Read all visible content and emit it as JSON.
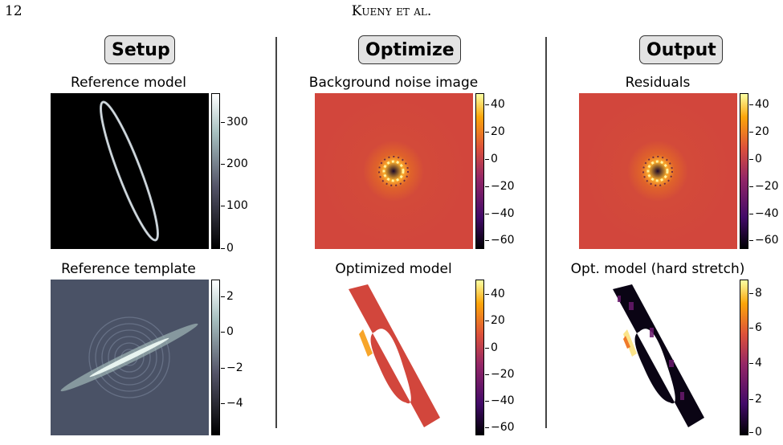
{
  "header": {
    "page_number": "12",
    "authors": "Kueny et al."
  },
  "columns": [
    {
      "badge": "Setup"
    },
    {
      "badge": "Optimize"
    },
    {
      "badge": "Output"
    }
  ],
  "panels": {
    "reference_model": {
      "title": "Reference model",
      "colormap": "bone",
      "ticks": [
        "300",
        "200",
        "100",
        "0"
      ]
    },
    "reference_template": {
      "title": "Reference template",
      "colormap": "bone",
      "ticks": [
        "2",
        "0",
        "−2",
        "−4"
      ]
    },
    "background_noise": {
      "title": "Background noise image",
      "colormap": "inferno",
      "ticks": [
        "40",
        "20",
        "0",
        "−20",
        "−40",
        "−60"
      ]
    },
    "optimized_model": {
      "title": "Optimized model",
      "colormap": "inferno",
      "ticks": [
        "40",
        "20",
        "0",
        "−20",
        "−40",
        "−60"
      ]
    },
    "residuals": {
      "title": "Residuals",
      "colormap": "inferno",
      "ticks": [
        "40",
        "20",
        "0",
        "−20",
        "−40",
        "−60"
      ]
    },
    "opt_model_hard": {
      "title": "Opt. model (hard stretch)",
      "colormap": "inferno",
      "ticks": [
        "8",
        "6",
        "4",
        "2",
        "0"
      ]
    }
  },
  "colors": {
    "inferno_mid": "#d2463c",
    "bone_dark": "#3c4658"
  }
}
